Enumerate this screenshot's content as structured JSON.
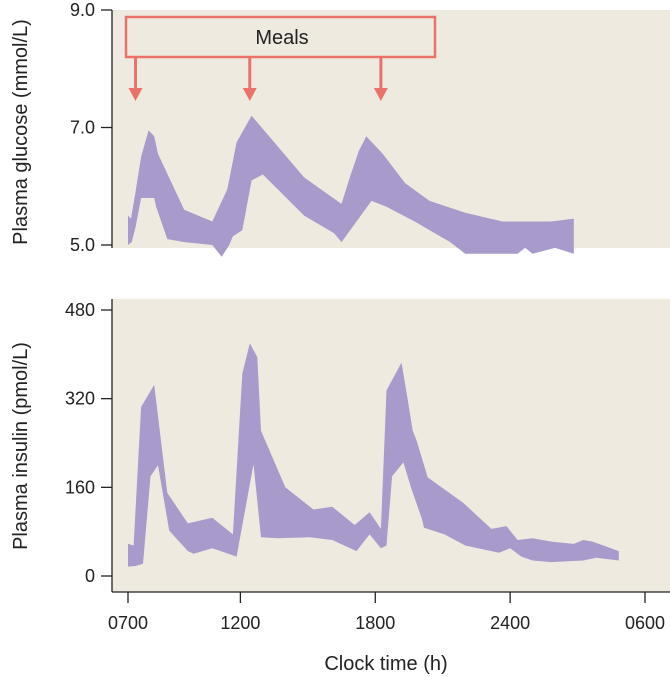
{
  "chart_data": [
    {
      "type": "area",
      "name": "glucose-panel",
      "ylabel": "Plasma glucose (mmol/L)",
      "ylim": [
        4.7,
        9.0
      ],
      "yticks": [
        "9.0",
        "7.0",
        "5.0"
      ],
      "ytick_values": [
        9.0,
        7.0,
        5.0
      ],
      "x_minutes_ticks": [
        0,
        300,
        660,
        1020,
        1380
      ],
      "band": {
        "upper": [
          [
            0,
            5.5
          ],
          [
            8,
            5.45
          ],
          [
            20,
            5.9
          ],
          [
            35,
            6.5
          ],
          [
            55,
            6.95
          ],
          [
            70,
            6.85
          ],
          [
            80,
            6.55
          ],
          [
            150,
            5.6
          ],
          [
            225,
            5.4
          ],
          [
            265,
            5.95
          ],
          [
            290,
            6.75
          ],
          [
            330,
            7.2
          ],
          [
            470,
            6.15
          ],
          [
            570,
            5.7
          ],
          [
            592,
            6.15
          ],
          [
            616,
            6.6
          ],
          [
            636,
            6.85
          ],
          [
            680,
            6.55
          ],
          [
            740,
            6.05
          ],
          [
            805,
            5.75
          ],
          [
            900,
            5.55
          ],
          [
            1000,
            5.4
          ],
          [
            1130,
            5.4
          ],
          [
            1190,
            5.45
          ]
        ],
        "lower": [
          [
            1190,
            4.85
          ],
          [
            1140,
            4.95
          ],
          [
            1080,
            4.85
          ],
          [
            1060,
            4.95
          ],
          [
            1040,
            4.85
          ],
          [
            1000,
            4.85
          ],
          [
            900,
            4.85
          ],
          [
            860,
            5.05
          ],
          [
            765,
            5.4
          ],
          [
            690,
            5.65
          ],
          [
            650,
            5.75
          ],
          [
            570,
            5.05
          ],
          [
            550,
            5.2
          ],
          [
            470,
            5.5
          ],
          [
            360,
            6.2
          ],
          [
            330,
            6.1
          ],
          [
            305,
            5.25
          ],
          [
            280,
            5.15
          ],
          [
            270,
            5.0
          ],
          [
            250,
            4.8
          ],
          [
            225,
            5.0
          ],
          [
            150,
            5.05
          ],
          [
            105,
            5.1
          ],
          [
            75,
            5.65
          ],
          [
            70,
            5.8
          ],
          [
            55,
            5.8
          ],
          [
            35,
            5.8
          ],
          [
            20,
            5.3
          ],
          [
            10,
            5.05
          ],
          [
            0,
            5.0
          ]
        ]
      },
      "annotation": {
        "label": "Meals",
        "meal_times_minutes": [
          20,
          325,
          675
        ]
      },
      "colors": {
        "band": "#a89acb",
        "bracket": "#e9736a"
      }
    },
    {
      "type": "area",
      "name": "insulin-panel",
      "ylabel": "Plasma insulin (pmol/L)",
      "xlabel": "Clock time (h)",
      "ylim": [
        0,
        480
      ],
      "yticks": [
        "480",
        "320",
        "160",
        "0"
      ],
      "ytick_values": [
        480,
        320,
        160,
        0
      ],
      "x": [
        "0700",
        "1200",
        "1800",
        "2400",
        "0600"
      ],
      "x_minutes_ticks": [
        0,
        300,
        660,
        1020,
        1380
      ],
      "band": {
        "upper": [
          [
            0,
            58
          ],
          [
            15,
            55
          ],
          [
            35,
            305
          ],
          [
            70,
            345
          ],
          [
            105,
            150
          ],
          [
            160,
            95
          ],
          [
            225,
            105
          ],
          [
            280,
            75
          ],
          [
            305,
            365
          ],
          [
            325,
            420
          ],
          [
            345,
            395
          ],
          [
            355,
            262
          ],
          [
            420,
            160
          ],
          [
            495,
            120
          ],
          [
            545,
            125
          ],
          [
            605,
            92
          ],
          [
            645,
            115
          ],
          [
            675,
            85
          ],
          [
            690,
            335
          ],
          [
            730,
            385
          ],
          [
            745,
            325
          ],
          [
            760,
            262
          ],
          [
            770,
            245
          ],
          [
            800,
            178
          ],
          [
            895,
            132
          ],
          [
            970,
            85
          ],
          [
            1010,
            90
          ],
          [
            1040,
            65
          ],
          [
            1080,
            68
          ],
          [
            1130,
            62
          ],
          [
            1190,
            58
          ],
          [
            1215,
            65
          ],
          [
            1240,
            62
          ],
          [
            1310,
            45
          ]
        ],
        "lower": [
          [
            1310,
            28
          ],
          [
            1250,
            33
          ],
          [
            1215,
            28
          ],
          [
            1130,
            25
          ],
          [
            1080,
            28
          ],
          [
            1050,
            35
          ],
          [
            1020,
            50
          ],
          [
            990,
            42
          ],
          [
            900,
            55
          ],
          [
            845,
            75
          ],
          [
            790,
            87
          ],
          [
            785,
            102
          ],
          [
            755,
            160
          ],
          [
            735,
            205
          ],
          [
            705,
            180
          ],
          [
            690,
            55
          ],
          [
            675,
            50
          ],
          [
            645,
            75
          ],
          [
            610,
            45
          ],
          [
            545,
            65
          ],
          [
            485,
            70
          ],
          [
            400,
            68
          ],
          [
            355,
            70
          ],
          [
            335,
            202
          ],
          [
            290,
            35
          ],
          [
            225,
            50
          ],
          [
            175,
            40
          ],
          [
            160,
            45
          ],
          [
            110,
            82
          ],
          [
            80,
            200
          ],
          [
            60,
            180
          ],
          [
            40,
            22
          ],
          [
            20,
            18
          ],
          [
            0,
            17
          ]
        ]
      },
      "colors": {
        "band": "#a89acb"
      }
    }
  ]
}
